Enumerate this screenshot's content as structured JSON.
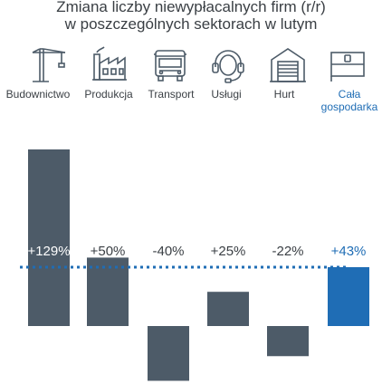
{
  "title_line1": "Zmiana liczby niewypłacalnych firm (r/r)",
  "title_line2": "w poszczególnych sektorach w lutym",
  "sectors": [
    {
      "label": "Budownictwo",
      "icon": "crane-icon"
    },
    {
      "label": "Produkcja",
      "icon": "factory-icon"
    },
    {
      "label": "Transport",
      "icon": "truck-icon"
    },
    {
      "label": "Usługi",
      "icon": "headset-icon"
    },
    {
      "label": "Hurt",
      "icon": "warehouse-icon"
    },
    {
      "label_line1": "Cała",
      "label_line2": "gospodarka",
      "icon": "flag-icon"
    }
  ],
  "colors": {
    "bar": "#4d5b68",
    "highlight": "#1f6db5",
    "reference_line": "#1f6db5",
    "text": "#3a3f44"
  },
  "chart_data": {
    "type": "bar",
    "title": "Zmiana liczby niewypłacalnych firm (r/r) w poszczególnych sektorach w lutym",
    "categories": [
      "Budownictwo",
      "Produkcja",
      "Transport",
      "Usługi",
      "Hurt",
      "Cała gospodarka"
    ],
    "values": [
      129,
      50,
      -40,
      25,
      -22,
      43
    ],
    "value_labels": [
      "+129%",
      "+50%",
      "-40%",
      "+25%",
      "-22%",
      "+43%"
    ],
    "highlight_category": "Cała gospodarka",
    "reference_line": {
      "value": 43,
      "style": "dotted"
    },
    "unit": "%",
    "xlabel": "",
    "ylabel": "",
    "ylim": [
      -40,
      129
    ],
    "grid": false,
    "legend": "none"
  }
}
